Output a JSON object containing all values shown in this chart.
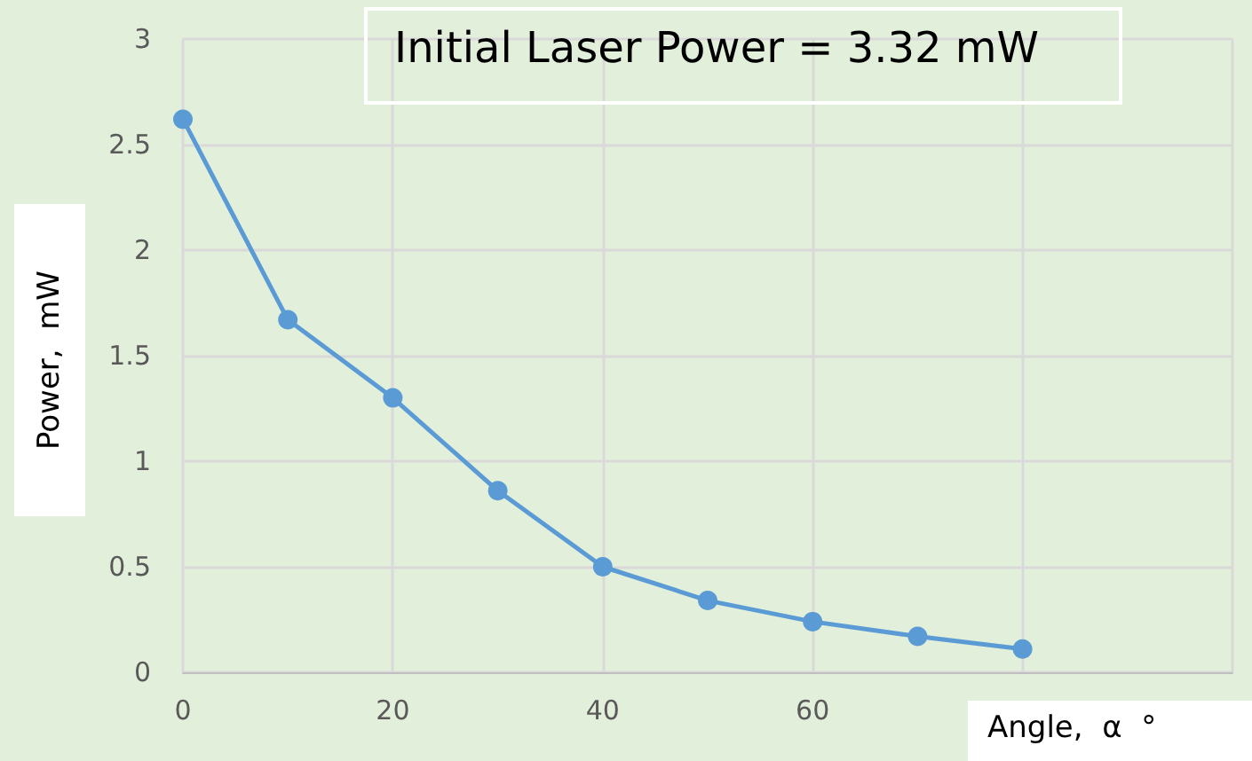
{
  "chart_data": {
    "type": "line",
    "title": "Initial Laser Power = 3.32 mW",
    "xlabel": "Angle,  α  °",
    "ylabel": "Power,  mW",
    "x": [
      0,
      10,
      20,
      30,
      40,
      50,
      60,
      70,
      80
    ],
    "series": [
      {
        "color": "#5b9bd5",
        "values": [
          2.62,
          1.67,
          1.3,
          0.86,
          0.5,
          0.34,
          0.24,
          0.17,
          0.11
        ]
      }
    ],
    "xlim": [
      0,
      100
    ],
    "xticks": [
      0,
      20,
      40,
      60,
      {
        "value": 80,
        "label": null
      },
      {
        "value": 100,
        "label": null
      }
    ],
    "ylim": [
      0,
      3
    ],
    "yticks": [
      0,
      0.5,
      1,
      1.5,
      2,
      2.5,
      3
    ],
    "grid": true,
    "marker": "circle",
    "line_style": "solid"
  }
}
